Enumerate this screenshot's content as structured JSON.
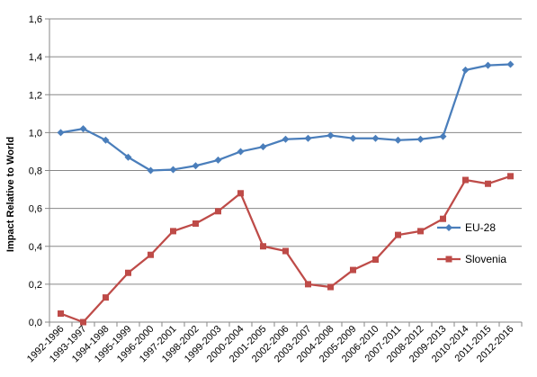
{
  "chart_data": {
    "type": "line",
    "title": "",
    "xlabel": "",
    "ylabel": "Impact Relative to World",
    "ylim": [
      0,
      1.6
    ],
    "ytick_step": 0.2,
    "ytick_labels": [
      "0,0",
      "0,2",
      "0,4",
      "0,6",
      "0,8",
      "1,0",
      "1,2",
      "1,4",
      "1,6"
    ],
    "grid": "horizontal",
    "legend_position": "right",
    "categories": [
      "1992-1996",
      "1993-1997",
      "1994-1998",
      "1995-1999",
      "1996-2000",
      "1997-2001",
      "1998-2002",
      "1999-2003",
      "2000-2004",
      "2001-2005",
      "2002-2006",
      "2003-2007",
      "2004-2008",
      "2005-2009",
      "2006-2010",
      "2007-2011",
      "2008-2012",
      "2009-2013",
      "2010-2014",
      "2011-2015",
      "2012-2016"
    ],
    "series": [
      {
        "name": "EU-28",
        "color": "#4a7ebb",
        "marker": "diamond",
        "values": [
          1.0,
          1.02,
          0.96,
          0.87,
          0.8,
          0.805,
          0.825,
          0.855,
          0.9,
          0.925,
          0.965,
          0.97,
          0.985,
          0.97,
          0.97,
          0.96,
          0.965,
          0.98,
          1.33,
          1.355,
          1.36
        ]
      },
      {
        "name": "Slovenia",
        "color": "#be4b48",
        "marker": "square",
        "values": [
          0.045,
          0.0,
          0.13,
          0.26,
          0.355,
          0.48,
          0.52,
          0.585,
          0.68,
          0.4,
          0.375,
          0.2,
          0.185,
          0.275,
          0.33,
          0.46,
          0.48,
          0.545,
          0.75,
          0.73,
          0.77
        ]
      }
    ]
  }
}
